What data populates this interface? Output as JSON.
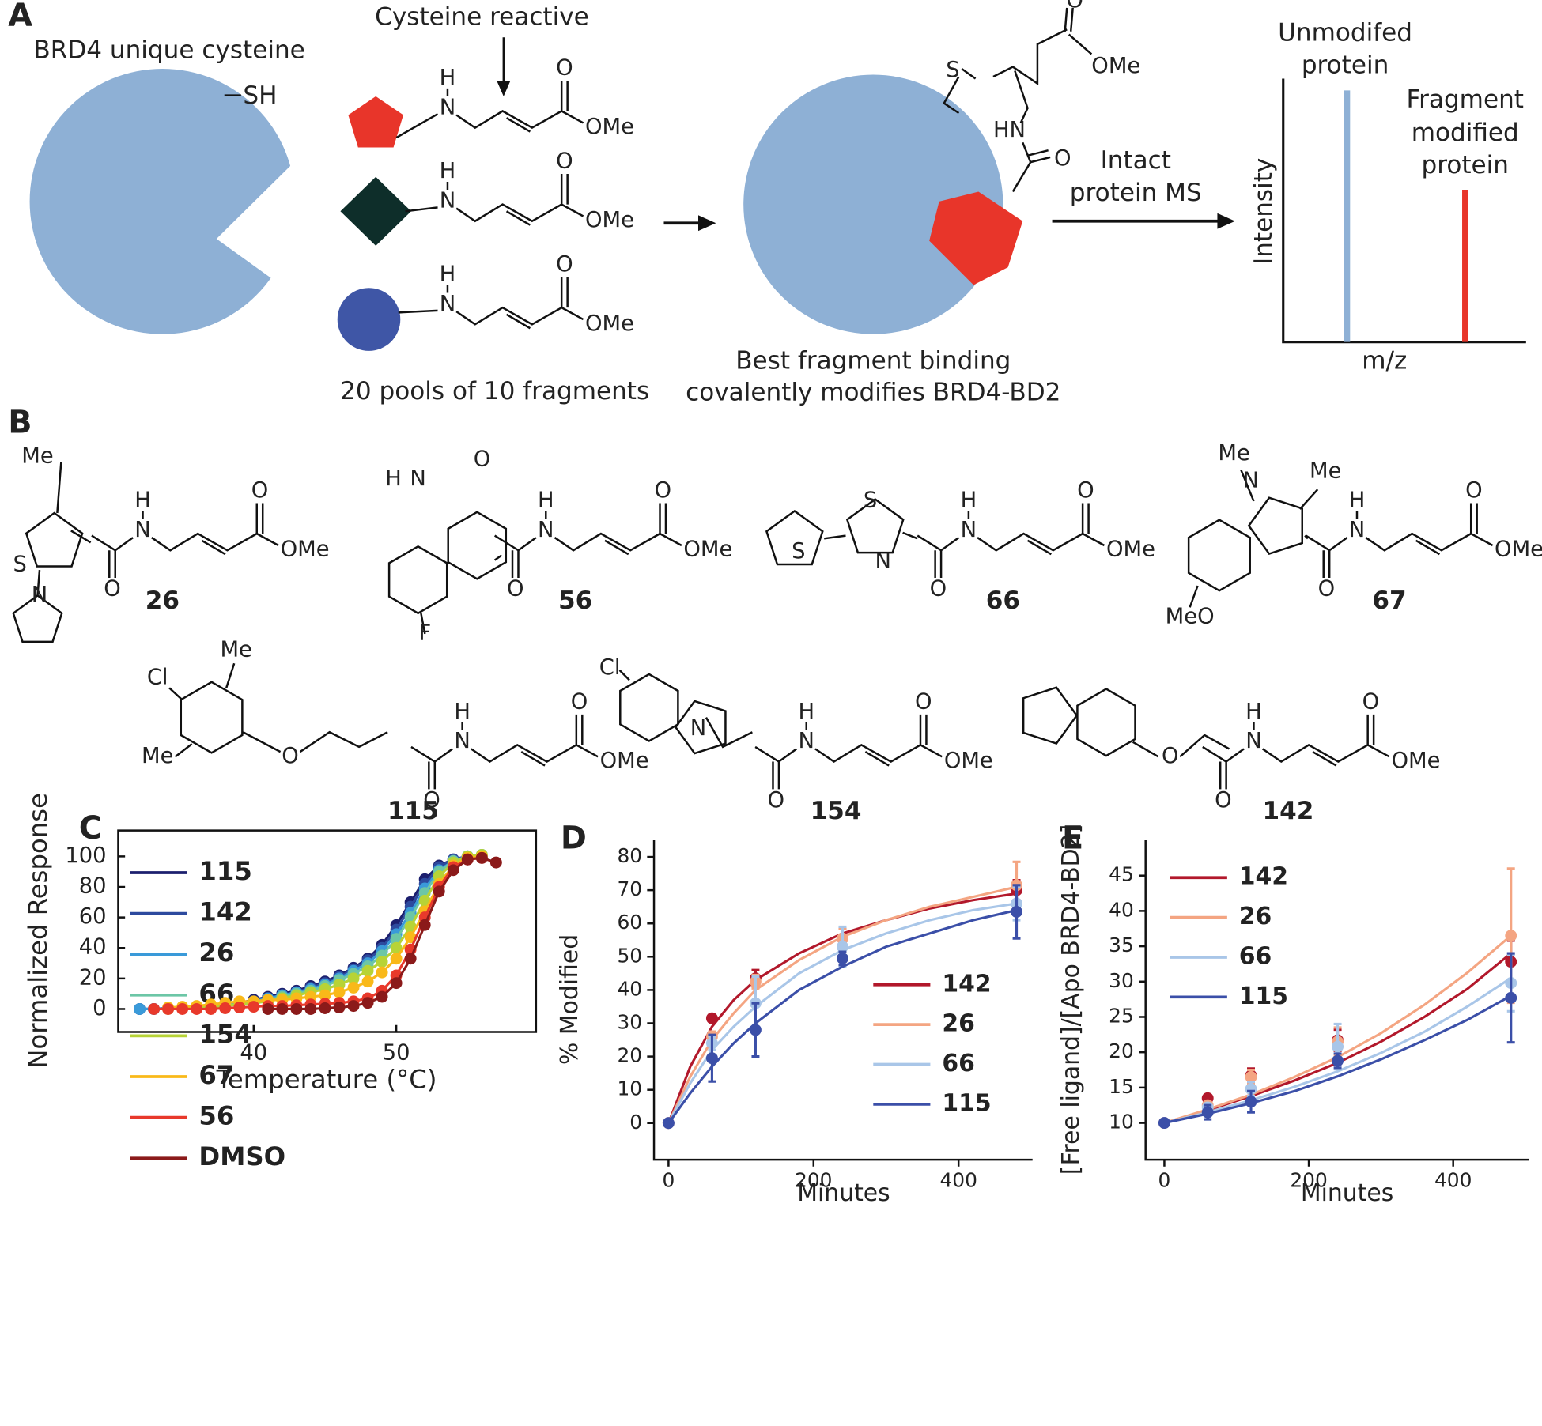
{
  "panel_a": {
    "label": "A",
    "protein": "BRD4 unique cysteine",
    "thiol": "SH",
    "reactive": "Cysteine reactive",
    "pools": "20 pools of 10 fragments",
    "result": [
      "Best fragment binding",
      "covalently modifies BRD4-BD2"
    ],
    "method": [
      "Intact",
      "protein MS"
    ],
    "unmodified": [
      "Unmodifed",
      "protein"
    ],
    "modified": [
      "Fragment",
      "modified",
      "protein"
    ],
    "y_axis": "Intensity",
    "x_axis": "m/z",
    "adduct_atoms": [
      "S",
      "O",
      "OMe",
      "HN",
      "O"
    ]
  },
  "chain": {
    "h": "H",
    "n": "N",
    "o": "O",
    "ome": "OMe"
  },
  "panel_b": {
    "label": "B",
    "compounds": [
      {
        "id": "26",
        "atoms": [
          "Me",
          "S",
          "N"
        ]
      },
      {
        "id": "56",
        "atoms": [
          "H",
          "N",
          "O",
          "F"
        ]
      },
      {
        "id": "66",
        "atoms": [
          "S",
          "S",
          "N"
        ]
      },
      {
        "id": "67",
        "atoms": [
          "Me",
          "N",
          "Me",
          "MeO"
        ]
      },
      {
        "id": "115",
        "atoms": [
          "Me",
          "Cl",
          "Me",
          "O"
        ]
      },
      {
        "id": "154",
        "atoms": [
          "Cl",
          "N"
        ]
      },
      {
        "id": "142",
        "atoms": [
          "O"
        ]
      }
    ]
  },
  "chart_data": [
    {
      "type": "line",
      "panel": "C",
      "x_label": "Temperature (°C)",
      "y_label": "Normalized Response",
      "x": [
        32,
        33,
        34,
        35,
        36,
        37,
        38,
        39,
        40,
        41,
        42,
        43,
        44,
        45,
        46,
        47,
        48,
        49,
        50,
        51,
        52,
        53,
        54,
        55,
        56,
        57
      ],
      "xlim": [
        30.5,
        59.8
      ],
      "ylim": [
        -15,
        117
      ],
      "xticks": [
        40,
        50
      ],
      "yticks": [
        0,
        20,
        40,
        60,
        80,
        100
      ],
      "legend": "upper left",
      "series": [
        {
          "name": "115",
          "color": "#1c1f6e",
          "values": [
            0,
            0,
            0.5,
            1,
            1.5,
            2,
            3,
            4,
            6,
            8,
            10,
            12,
            15,
            18,
            22,
            27,
            33,
            42,
            55,
            70,
            85,
            94,
            98,
            100,
            null,
            null
          ]
        },
        {
          "name": "142",
          "color": "#2d4a9e",
          "values": [
            0,
            0,
            0.5,
            1,
            1.5,
            2,
            3,
            4,
            5,
            7,
            9,
            11,
            14,
            17,
            21,
            26,
            32,
            40,
            52,
            67,
            82,
            93,
            98,
            100,
            null,
            null
          ]
        },
        {
          "name": "26",
          "color": "#3a9ad9",
          "values": [
            0,
            0,
            0.5,
            1,
            1.5,
            2,
            3,
            4,
            5,
            7,
            9,
            11,
            13,
            16,
            20,
            25,
            30,
            38,
            49,
            63,
            79,
            91,
            97,
            100,
            101,
            null
          ]
        },
        {
          "name": "66",
          "color": "#6cc6a6",
          "values": [
            null,
            null,
            0.5,
            1,
            1,
            2,
            2.5,
            3,
            4,
            6,
            8,
            10,
            12,
            15,
            19,
            23,
            28,
            35,
            46,
            60,
            76,
            90,
            97,
            100,
            101,
            null
          ]
        },
        {
          "name": "154",
          "color": "#b7d336",
          "values": [
            null,
            null,
            0,
            0.5,
            1,
            1.5,
            2,
            3,
            4,
            5,
            7,
            9,
            11,
            13,
            16,
            20,
            25,
            31,
            40,
            54,
            71,
            87,
            96,
            100,
            101,
            null
          ]
        },
        {
          "name": "67",
          "color": "#f9b919",
          "values": [
            null,
            null,
            1,
            1.5,
            2,
            3,
            4,
            5,
            5,
            6,
            6,
            7,
            8,
            9,
            11,
            14,
            18,
            24,
            33,
            47,
            64,
            82,
            94,
            99,
            100,
            null
          ]
        },
        {
          "name": "56",
          "color": "#e8392b",
          "values": [
            null,
            0,
            0,
            0,
            0,
            0,
            0.5,
            1,
            1.5,
            2,
            2,
            2.5,
            3,
            3.5,
            4,
            5,
            7,
            12,
            22,
            39,
            60,
            80,
            93,
            98,
            99,
            null
          ]
        },
        {
          "name": "DMSO",
          "color": "#8b1a1a",
          "values": [
            null,
            null,
            null,
            null,
            null,
            null,
            null,
            null,
            null,
            0,
            0,
            0,
            0,
            0.5,
            1,
            2,
            4,
            8,
            17,
            33,
            55,
            77,
            91,
            98,
            99,
            96
          ]
        }
      ]
    },
    {
      "type": "scatter",
      "panel": "D",
      "x_label": "Minutes",
      "y_label": "% Modified",
      "x": [
        0,
        60,
        120,
        240,
        480
      ],
      "fit_x": [
        0,
        30,
        60,
        90,
        120,
        180,
        240,
        300,
        360,
        420,
        480
      ],
      "xlim": [
        -20,
        502
      ],
      "ylim": [
        -11,
        85
      ],
      "xticks": [
        0,
        200,
        400
      ],
      "yticks": [
        0,
        10,
        20,
        30,
        40,
        50,
        60,
        70,
        80
      ],
      "legend": "lower right",
      "series": [
        {
          "name": "142",
          "color": "#b2182b",
          "values": [
            0,
            31.5,
            43.5,
            55.5,
            70
          ],
          "errors": [
            0,
            1,
            2.5,
            3,
            3
          ],
          "fit_values": [
            0,
            17,
            29,
            37,
            43,
            51,
            57,
            61,
            64.5,
            67,
            69
          ]
        },
        {
          "name": "26",
          "color": "#f4a582",
          "values": [
            0,
            26,
            42.5,
            55.5,
            71.5
          ],
          "errors": [
            0,
            1.5,
            2,
            3,
            7
          ],
          "fit_values": [
            0,
            14,
            25,
            33,
            40,
            49,
            56,
            61,
            65,
            68,
            71
          ]
        },
        {
          "name": "66",
          "color": "#a9c6e8",
          "values": [
            0,
            24,
            36,
            53,
            66
          ],
          "errors": [
            0,
            2,
            8,
            6,
            5
          ],
          "fit_values": [
            0,
            12,
            22,
            29,
            35,
            45,
            52,
            57,
            61,
            64,
            66
          ]
        },
        {
          "name": "115",
          "color": "#3b4fa8",
          "values": [
            0,
            19.5,
            28,
            49.5,
            63.5
          ],
          "errors": [
            0,
            7,
            8,
            2,
            8
          ],
          "fit_values": [
            0,
            9,
            17,
            24,
            30,
            40,
            47,
            53,
            57,
            61,
            64
          ]
        }
      ]
    },
    {
      "type": "scatter",
      "panel": "E",
      "x_label": "Minutes",
      "y_label": "[Free ligand]/[Apo BRD4-BD2]",
      "x": [
        0,
        60,
        120,
        240,
        480
      ],
      "fit_x": [
        0,
        60,
        120,
        180,
        240,
        300,
        360,
        420,
        480
      ],
      "xlim": [
        -26,
        505
      ],
      "ylim": [
        4.8,
        50
      ],
      "xticks": [
        0,
        200,
        400
      ],
      "yticks": [
        10,
        15,
        20,
        25,
        30,
        35,
        40,
        45
      ],
      "legend": "upper left",
      "series": [
        {
          "name": "142",
          "color": "#b2182b",
          "values": [
            10,
            13.5,
            16.7,
            21.7,
            32.8
          ],
          "errors": [
            0,
            0.3,
            1,
            1.5,
            3
          ],
          "fit_values": [
            10,
            11.8,
            13.8,
            16,
            18.5,
            21.5,
            25,
            29,
            34
          ]
        },
        {
          "name": "26",
          "color": "#f4a582",
          "values": [
            10,
            12.5,
            16.5,
            21.5,
            36.5
          ],
          "errors": [
            0,
            0.5,
            1,
            2,
            9.5
          ],
          "fit_values": [
            10,
            11.9,
            14,
            16.5,
            19.3,
            22.7,
            26.7,
            31.3,
            36.5
          ]
        },
        {
          "name": "66",
          "color": "#a9c6e8",
          "values": [
            10,
            12.2,
            14.8,
            20.8,
            29.8
          ],
          "errors": [
            0,
            0.5,
            1,
            3.2,
            4
          ],
          "fit_values": [
            10,
            11.5,
            13.2,
            15.1,
            17.3,
            19.9,
            22.9,
            26.5,
            30.5
          ]
        },
        {
          "name": "115",
          "color": "#3b4fa8",
          "values": [
            10,
            11.5,
            13,
            18.8,
            27.7
          ],
          "errors": [
            0,
            1,
            1.5,
            1,
            6.3
          ],
          "fit_values": [
            10,
            11.3,
            12.8,
            14.5,
            16.6,
            19,
            21.7,
            24.6,
            28
          ]
        }
      ]
    }
  ]
}
